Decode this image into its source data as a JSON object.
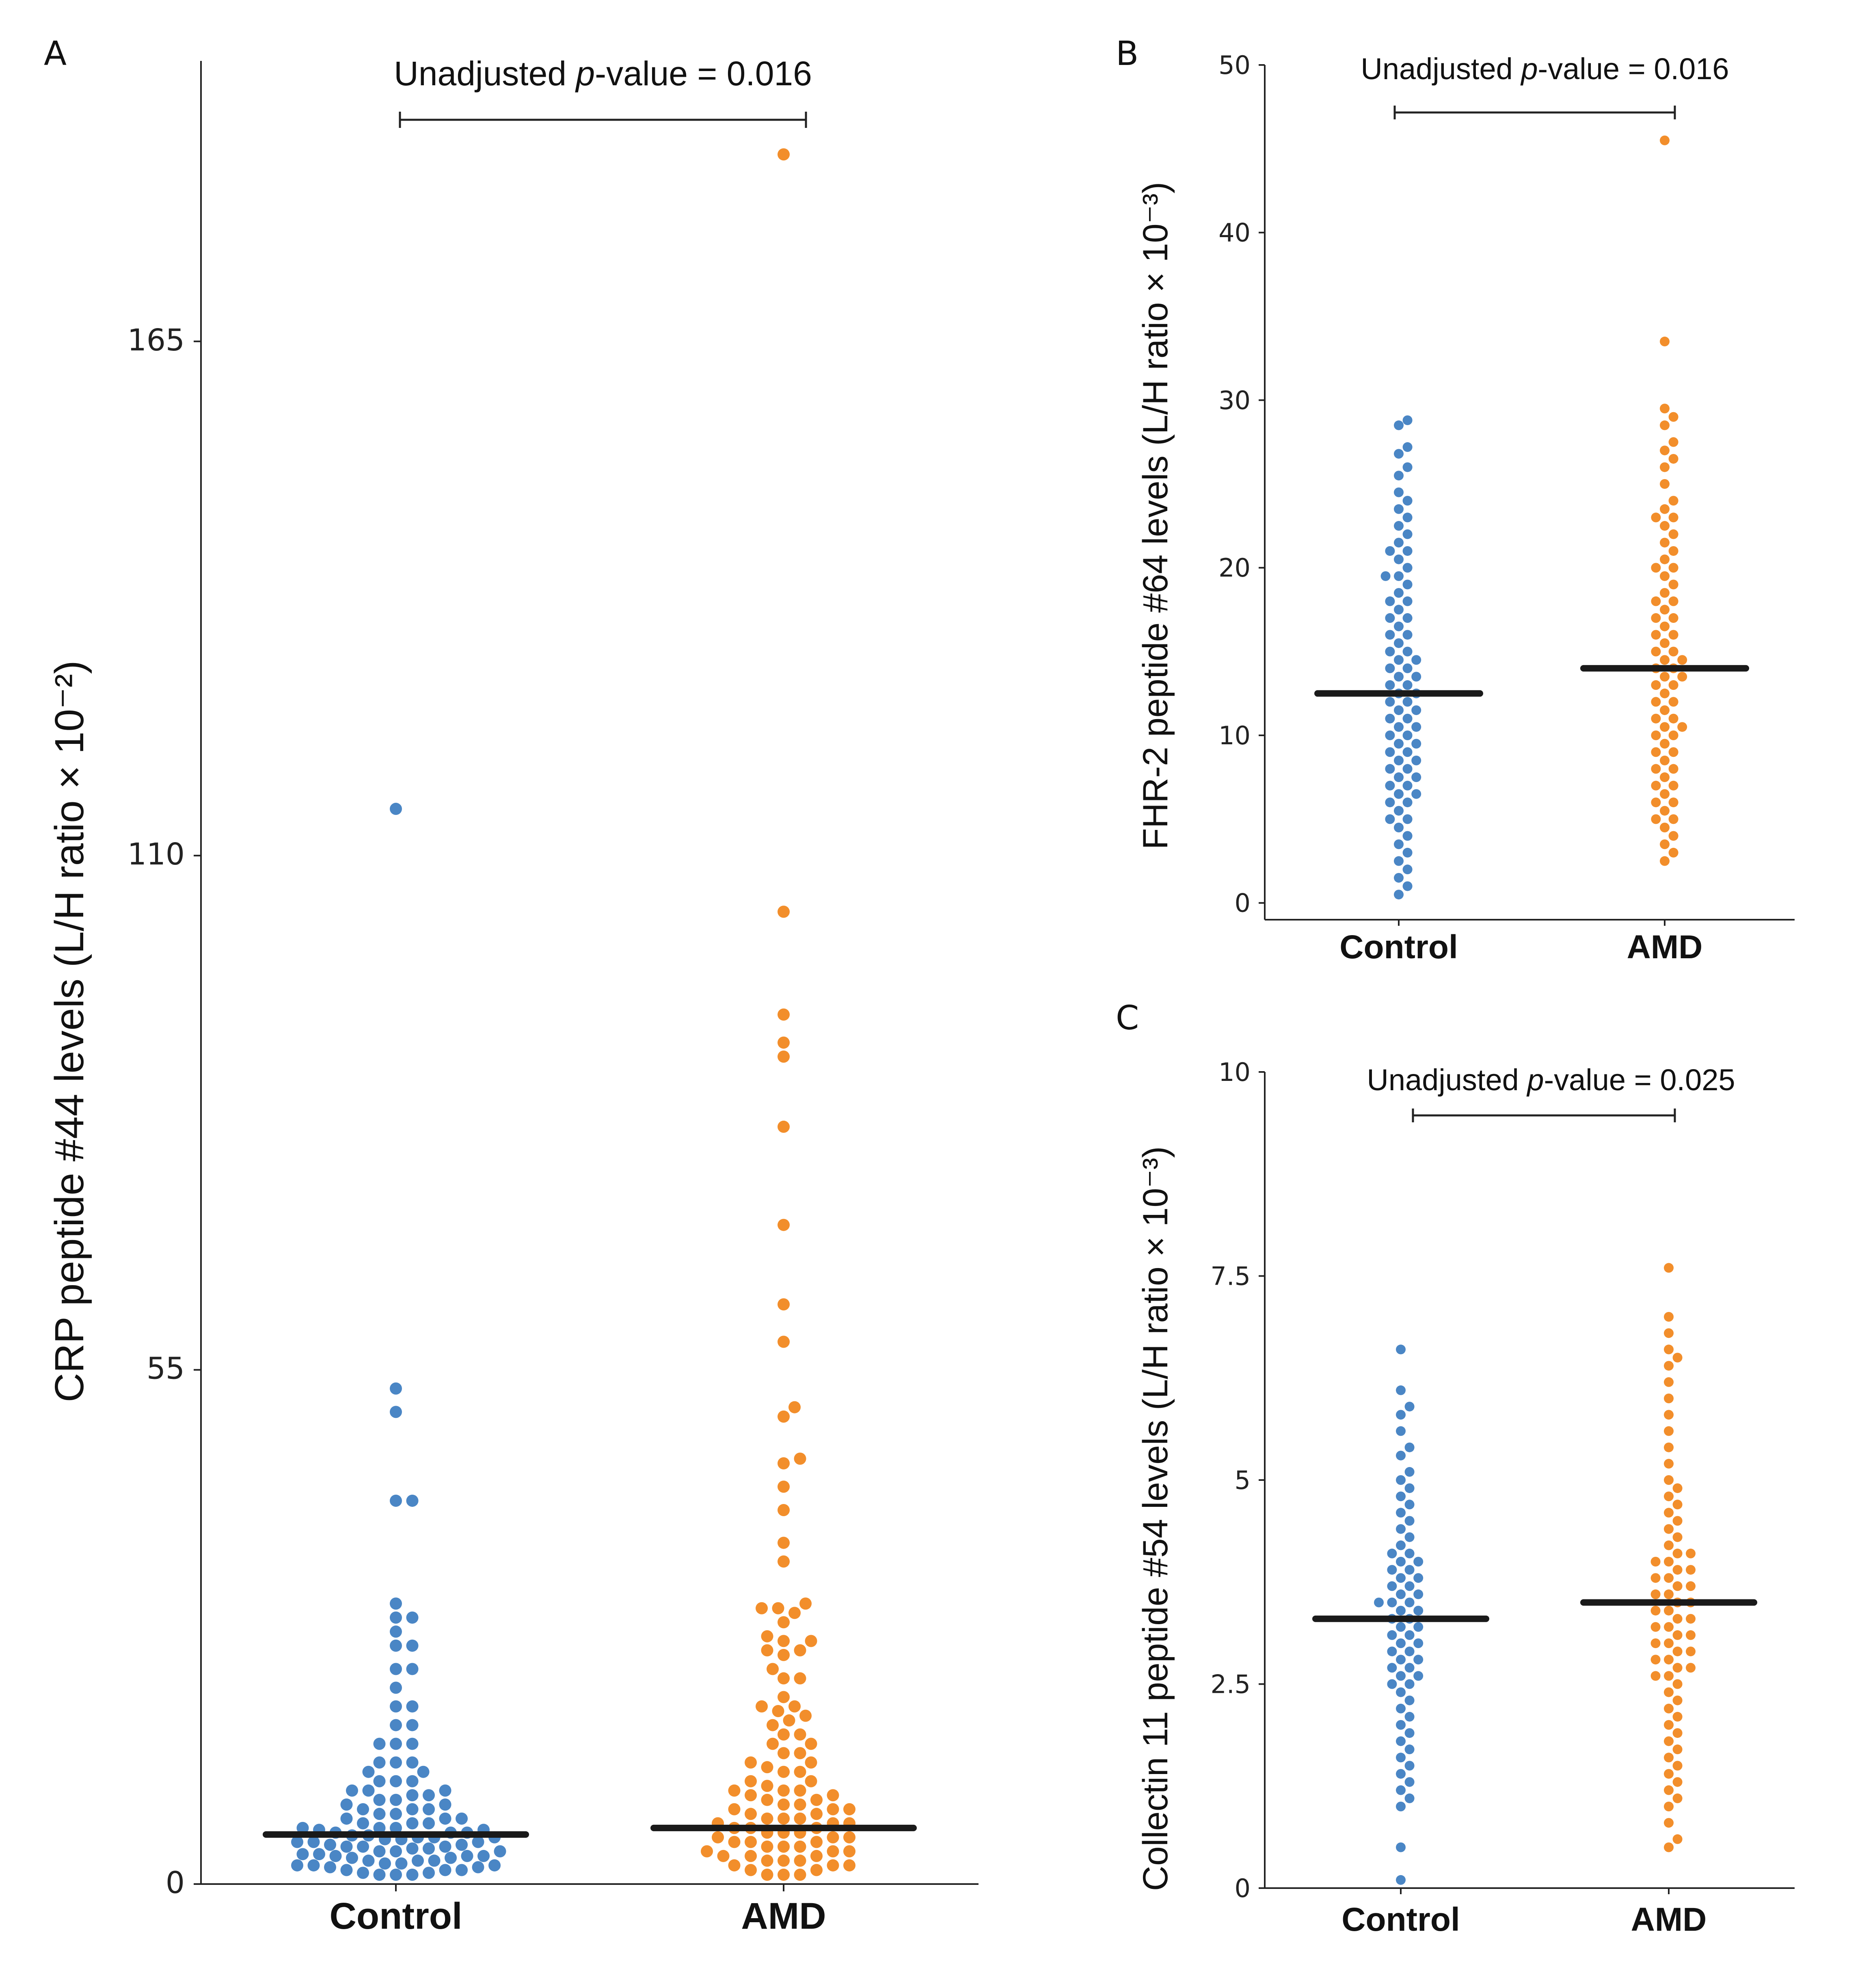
{
  "colors": {
    "control": "#4a86c5",
    "amd": "#f28e2b",
    "median": "#1a1a1a",
    "axis": "#222222"
  },
  "chart_data": [
    {
      "panel": "A",
      "type": "scatter",
      "subtype": "beeswarm",
      "title": "",
      "xlabel": "",
      "ylabel": "CRP peptide #44 levels (L/H ratio × 10⁻²)",
      "ylim": [
        0,
        195
      ],
      "yticks": [
        0,
        55,
        110,
        165
      ],
      "ytick_labels": [
        "0",
        "55",
        "110",
        "165"
      ],
      "categories": [
        "Control",
        "AMD"
      ],
      "series": [
        {
          "name": "Control",
          "color": "#4a86c5",
          "median": 5.3,
          "values": [
            115,
            53,
            50.5,
            41,
            41,
            30,
            28.5,
            28.5,
            27,
            25.5,
            25.5,
            23,
            23,
            21,
            19,
            19,
            17,
            17,
            15,
            15,
            15,
            13,
            13,
            13,
            12,
            12,
            11,
            11,
            11,
            10,
            10,
            10,
            9.5,
            9.5,
            9,
            9,
            8.5,
            8.5,
            8,
            8,
            8,
            7.5,
            7.5,
            7,
            7,
            7,
            6.5,
            6.5,
            6.5,
            6,
            6,
            6,
            5.8,
            5.8,
            5.5,
            5.5,
            5.5,
            5.2,
            5.2,
            5,
            5,
            5,
            4.8,
            4.8,
            4.5,
            4.5,
            4.5,
            4.2,
            4.2,
            4,
            4,
            4,
            3.8,
            3.8,
            3.5,
            3.5,
            3.5,
            3.2,
            3.2,
            3,
            3,
            3,
            2.8,
            2.8,
            2.5,
            2.5,
            2.5,
            2.2,
            2.2,
            2,
            2,
            2,
            1.8,
            1.8,
            1.5,
            1.5,
            1.5,
            1.2,
            1.2,
            1,
            1,
            1
          ]
        },
        {
          "name": "AMD",
          "color": "#f28e2b",
          "median": 6,
          "values": [
            185,
            104,
            93,
            90,
            88.5,
            81,
            70.5,
            62,
            58,
            51,
            50,
            45.5,
            45,
            42.5,
            40,
            36.5,
            34.5,
            30,
            29.5,
            29.5,
            29,
            28,
            26.5,
            26,
            26,
            25,
            25,
            24.5,
            23,
            22,
            22,
            20,
            19,
            19,
            18.5,
            18,
            17.5,
            17,
            16,
            16,
            15,
            15,
            14,
            14,
            13,
            13,
            12.5,
            12,
            12,
            11,
            11,
            10.5,
            10,
            10,
            10,
            9.5,
            9.5,
            9,
            9,
            8.5,
            8.5,
            8,
            8,
            8,
            7.5,
            7.5,
            7,
            7,
            7,
            6.5,
            6.5,
            6.5,
            6,
            6,
            6,
            5.5,
            5.5,
            5.5,
            5,
            5,
            5,
            4.5,
            4.5,
            4.5,
            4,
            4,
            4,
            3.5,
            3.5,
            3.5,
            3,
            3,
            3,
            2.5,
            2.5,
            2.5,
            2,
            2,
            2,
            1.5,
            1.5,
            1,
            1,
            1
          ]
        }
      ],
      "annotation": {
        "prefix": "Unadjusted ",
        "italic": "p",
        "suffix": "-value = 0.016"
      }
    },
    {
      "panel": "B",
      "type": "scatter",
      "subtype": "beeswarm",
      "title": "",
      "xlabel": "",
      "ylabel": "FHR-2 peptide #64 levels (L/H ratio × 10⁻³)",
      "ylim": [
        -1,
        50
      ],
      "yticks": [
        0,
        10,
        20,
        30,
        40,
        50
      ],
      "ytick_labels": [
        "0",
        "10",
        "20",
        "30",
        "40",
        "50"
      ],
      "categories": [
        "Control",
        "AMD"
      ],
      "series": [
        {
          "name": "Control",
          "color": "#4a86c5",
          "median": 12.5,
          "values": [
            28.8,
            28.5,
            27.2,
            26.8,
            26,
            25.5,
            24.5,
            24,
            23.5,
            23,
            22.5,
            22,
            21.5,
            21,
            21,
            20.5,
            20,
            19.5,
            19.5,
            19,
            18.5,
            18,
            18,
            17.5,
            17,
            17,
            16.5,
            16,
            16,
            15.5,
            15,
            15,
            14.5,
            14.5,
            14,
            14,
            13.5,
            13.5,
            13,
            13,
            12.5,
            12.5,
            12,
            12,
            11.5,
            11.5,
            11,
            11,
            10.5,
            10.5,
            10,
            10,
            9.5,
            9.5,
            9,
            9,
            8.5,
            8.5,
            8,
            8,
            7.5,
            7.5,
            7,
            7,
            6.5,
            6.5,
            6,
            6,
            5.5,
            5,
            5,
            4.5,
            4,
            3.5,
            3,
            2.5,
            2,
            1.5,
            1,
            0.5
          ]
        },
        {
          "name": "AMD",
          "color": "#f28e2b",
          "median": 14,
          "values": [
            45.5,
            33.5,
            29.5,
            29,
            28.5,
            27.5,
            27,
            26.5,
            26,
            25,
            24,
            23.5,
            23,
            23,
            22.5,
            22,
            21.5,
            21,
            20.5,
            20,
            20,
            19.5,
            19,
            18.5,
            18,
            18,
            17.5,
            17,
            17,
            16.5,
            16,
            16,
            15.5,
            15,
            15,
            14.5,
            14.5,
            14,
            14,
            13.5,
            13.5,
            13,
            13,
            12.5,
            12,
            12,
            11.5,
            11,
            11,
            10.5,
            10.5,
            10,
            10,
            9.5,
            9,
            9,
            8.5,
            8,
            8,
            7.5,
            7,
            7,
            6.5,
            6,
            6,
            5.5,
            5,
            5,
            4.5,
            4,
            3.5,
            3,
            2.5
          ]
        }
      ],
      "annotation": {
        "prefix": "Unadjusted ",
        "italic": "p",
        "suffix": "-value = 0.016"
      }
    },
    {
      "panel": "C",
      "type": "scatter",
      "subtype": "beeswarm",
      "title": "",
      "xlabel": "",
      "ylabel": "Collectin 11 peptide #54 levels (L/H ratio × 10⁻³)",
      "ylim": [
        0,
        10
      ],
      "yticks": [
        0,
        2.5,
        5,
        7.5,
        10
      ],
      "ytick_labels": [
        "0",
        "2.5",
        "5",
        "7.5",
        "10"
      ],
      "categories": [
        "Control",
        "AMD"
      ],
      "series": [
        {
          "name": "Control",
          "color": "#4a86c5",
          "median": 3.3,
          "values": [
            6.6,
            6.1,
            5.9,
            5.8,
            5.6,
            5.4,
            5.3,
            5.1,
            5,
            4.9,
            4.8,
            4.7,
            4.6,
            4.5,
            4.4,
            4.3,
            4.2,
            4.1,
            4.1,
            4,
            4,
            3.9,
            3.9,
            3.8,
            3.8,
            3.7,
            3.7,
            3.6,
            3.6,
            3.5,
            3.5,
            3.5,
            3.4,
            3.4,
            3.3,
            3.3,
            3.2,
            3.2,
            3.1,
            3.1,
            3,
            3,
            2.9,
            2.9,
            2.8,
            2.8,
            2.7,
            2.7,
            2.6,
            2.6,
            2.5,
            2.5,
            2.4,
            2.3,
            2.2,
            2.1,
            2,
            1.9,
            1.8,
            1.7,
            1.6,
            1.5,
            1.4,
            1.3,
            1.2,
            1.1,
            1,
            0.5,
            0.1
          ]
        },
        {
          "name": "AMD",
          "color": "#f28e2b",
          "median": 3.5,
          "values": [
            7.6,
            7,
            6.8,
            6.6,
            6.5,
            6.4,
            6.2,
            6,
            5.8,
            5.6,
            5.4,
            5.2,
            5,
            4.9,
            4.8,
            4.7,
            4.6,
            4.5,
            4.4,
            4.3,
            4.2,
            4.1,
            4.1,
            4,
            4,
            3.9,
            3.9,
            3.8,
            3.8,
            3.7,
            3.7,
            3.6,
            3.6,
            3.5,
            3.5,
            3.4,
            3.4,
            3.3,
            3.3,
            3.2,
            3.2,
            3.1,
            3.1,
            3,
            3,
            2.9,
            2.9,
            2.8,
            2.8,
            2.7,
            2.7,
            2.6,
            2.6,
            2.5,
            2.4,
            2.3,
            2.2,
            2.1,
            2,
            1.9,
            1.8,
            1.7,
            1.6,
            1.5,
            1.4,
            1.3,
            1.2,
            1.1,
            1,
            0.8,
            0.6,
            0.5
          ]
        }
      ],
      "annotation": {
        "prefix": "Unadjusted ",
        "italic": "p",
        "suffix": "-value = 0.025"
      }
    }
  ]
}
